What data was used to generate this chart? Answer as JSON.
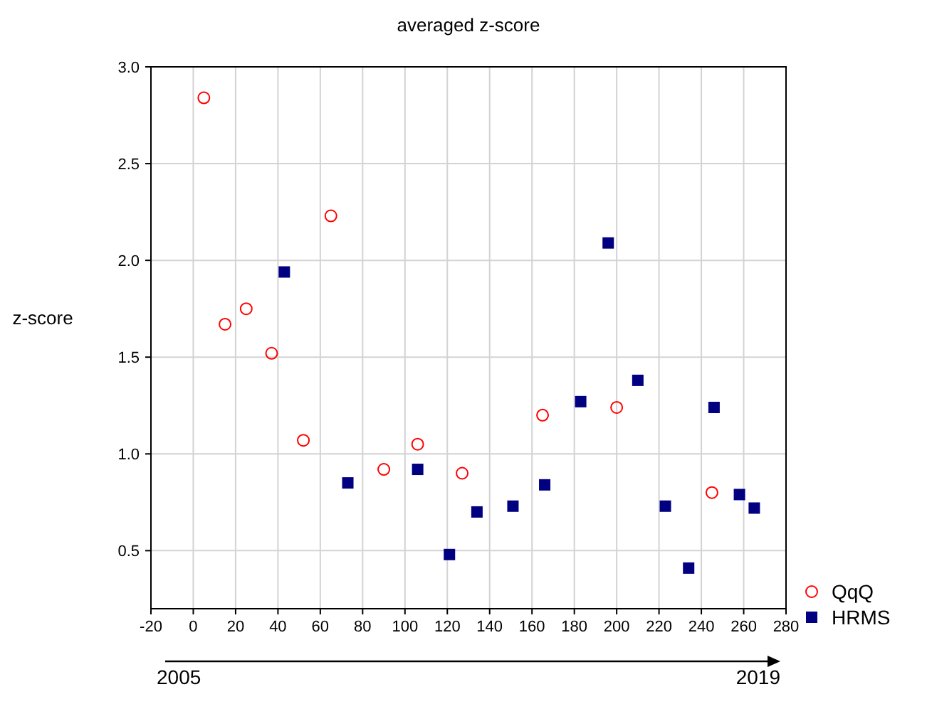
{
  "chart_data": {
    "type": "scatter",
    "title": "averaged z-score",
    "ylabel": "z-score",
    "xlim": [
      -20,
      280
    ],
    "xticks": [
      -20,
      0,
      20,
      40,
      60,
      80,
      100,
      120,
      140,
      160,
      180,
      200,
      220,
      240,
      260,
      280
    ],
    "ylim": [
      0.2,
      3.0
    ],
    "yticks": [
      {
        "value": 0.5,
        "label": "0.5"
      },
      {
        "value": 1,
        "label": "1.0"
      },
      {
        "value": 1.5,
        "label": "1.5"
      },
      {
        "value": 2,
        "label": "2.0"
      },
      {
        "value": 2.5,
        "label": "2.5"
      },
      {
        "value": 3,
        "label": "3.0"
      }
    ],
    "grid": true,
    "legend": "bottom right",
    "annotations": [
      "2005",
      "2019"
    ],
    "series": [
      {
        "name": "QqQ",
        "color": "#ff0000",
        "marker": "circle",
        "x": [
          5,
          15,
          25,
          37,
          52,
          65,
          90,
          106,
          127,
          165,
          200,
          245
        ],
        "values": [
          2.84,
          1.67,
          1.75,
          1.52,
          1.07,
          2.23,
          0.92,
          1.05,
          0.9,
          1.2,
          1.24,
          0.8
        ]
      },
      {
        "name": "HRMS",
        "color": "#000080",
        "marker": "square",
        "x": [
          43,
          73,
          106,
          121,
          134,
          151,
          166,
          183,
          196,
          210,
          223,
          234,
          246,
          258,
          265
        ],
        "values": [
          1.94,
          0.85,
          0.92,
          0.48,
          0.7,
          0.73,
          0.84,
          1.27,
          2.09,
          1.38,
          0.73,
          0.41,
          1.24,
          0.79,
          0.72
        ]
      }
    ]
  }
}
